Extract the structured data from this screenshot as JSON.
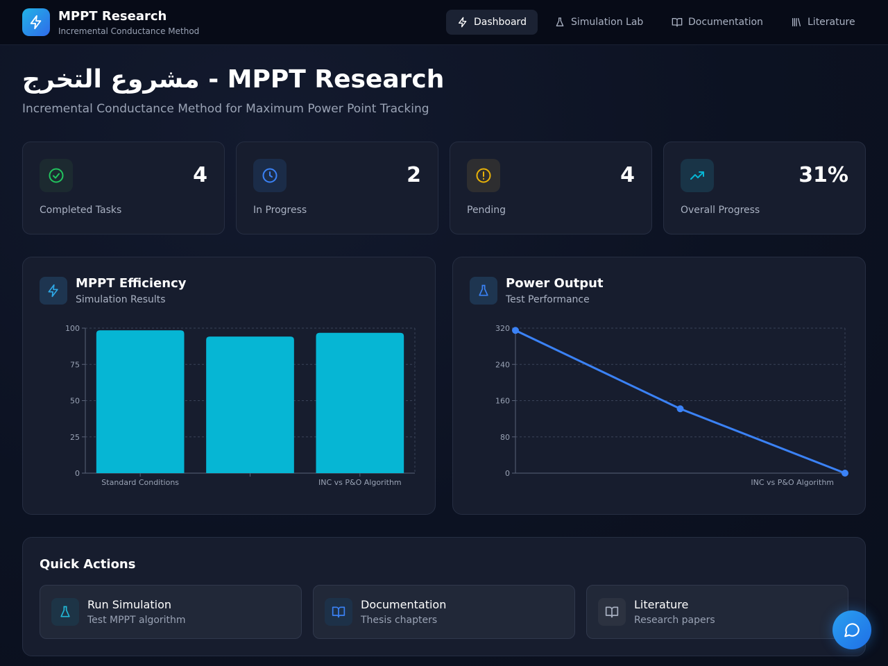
{
  "header": {
    "brand_title": "MPPT Research",
    "brand_subtitle": "Incremental Conductance Method",
    "nav": [
      {
        "label": "Dashboard",
        "icon": "zap-icon",
        "active": true
      },
      {
        "label": "Simulation Lab",
        "icon": "flask-icon",
        "active": false
      },
      {
        "label": "Documentation",
        "icon": "book-open-icon",
        "active": false
      },
      {
        "label": "Literature",
        "icon": "library-icon",
        "active": false
      }
    ]
  },
  "page": {
    "title": "مشروع التخرج - MPPT Research",
    "subtitle": "Incremental Conductance Method for Maximum Power Point Tracking"
  },
  "stats": [
    {
      "value": "4",
      "label": "Completed Tasks",
      "icon": "check-circle-icon",
      "color": "#22c55e"
    },
    {
      "value": "2",
      "label": "In Progress",
      "icon": "clock-icon",
      "color": "#3b82f6"
    },
    {
      "value": "4",
      "label": "Pending",
      "icon": "alert-circle-icon",
      "color": "#eab308"
    },
    {
      "value": "31%",
      "label": "Overall Progress",
      "icon": "trending-up-icon",
      "color": "#06b6d4"
    }
  ],
  "efficiency_panel": {
    "title": "MPPT Efficiency",
    "subtitle": "Simulation Results",
    "icon": "zap-icon"
  },
  "power_panel": {
    "title": "Power Output",
    "subtitle": "Test Performance",
    "icon": "flask-icon"
  },
  "chart_data": [
    {
      "type": "bar",
      "categories": [
        "Standard Conditions",
        "",
        "INC vs P&O Algorithm"
      ],
      "values": [
        98.5,
        94.2,
        96.8
      ],
      "ylim": [
        0,
        100
      ],
      "yticks": [
        0,
        25,
        50,
        75,
        100
      ],
      "grid": true,
      "color": "#06b6d4"
    },
    {
      "type": "line",
      "categories": [
        "",
        "",
        "INC vs P&O Algorithm"
      ],
      "values": [
        315,
        142,
        0
      ],
      "ylim": [
        0,
        320
      ],
      "yticks": [
        0,
        80,
        160,
        240,
        320
      ],
      "grid": true,
      "color": "#3b82f6"
    }
  ],
  "quick_actions": {
    "title": "Quick Actions",
    "items": [
      {
        "label": "Run Simulation",
        "subtitle": "Test MPPT algorithm",
        "icon": "flask-icon"
      },
      {
        "label": "Documentation",
        "subtitle": "Thesis chapters",
        "icon": "book-open-icon"
      },
      {
        "label": "Literature",
        "subtitle": "Research papers",
        "icon": "book-open-icon"
      }
    ]
  }
}
